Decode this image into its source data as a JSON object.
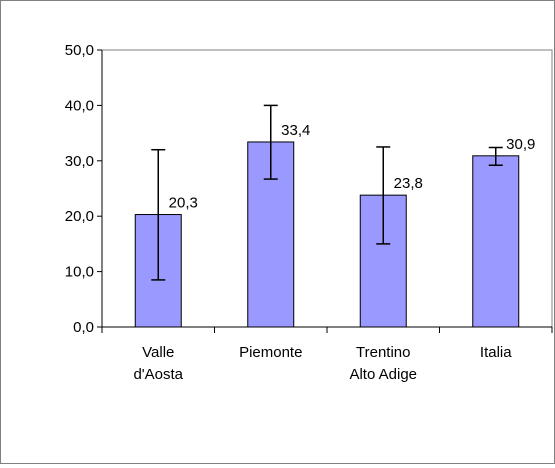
{
  "chart_data": {
    "type": "bar",
    "title": "",
    "xlabel": "",
    "ylabel": "",
    "categories": [
      [
        "Valle",
        "d'Aosta"
      ],
      [
        "Piemonte"
      ],
      [
        "Trentino",
        "Alto Adige"
      ],
      [
        "Italia"
      ]
    ],
    "values": [
      20.3,
      33.4,
      23.8,
      30.9
    ],
    "value_labels": [
      "20,3",
      "33,4",
      "23,8",
      "30,9"
    ],
    "error_low": [
      8.5,
      26.7,
      15.0,
      29.2
    ],
    "error_high": [
      32.0,
      40.0,
      32.5,
      32.4
    ],
    "ylim": [
      0,
      50
    ],
    "yticks": [
      0,
      10,
      20,
      30,
      40,
      50
    ],
    "ytick_labels": [
      "0,0",
      "10,0",
      "20,0",
      "30,0",
      "40,0",
      "50,0"
    ],
    "grid": false,
    "legend": "none",
    "colors": {
      "bar_fill": "#9999ff",
      "bar_stroke": "#000000",
      "axis": "#000000",
      "plot_border": "#808080"
    }
  }
}
